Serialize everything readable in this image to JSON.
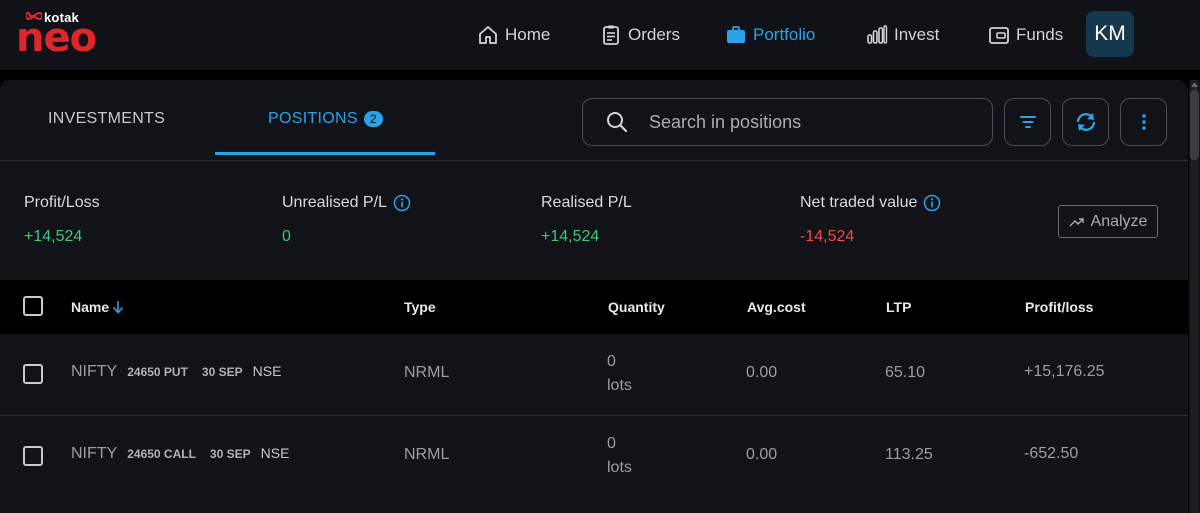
{
  "brand": {
    "small": "kotak",
    "big": "neo"
  },
  "nav": {
    "home": "Home",
    "orders": "Orders",
    "portfolio": "Portfolio",
    "invest": "Invest",
    "funds": "Funds",
    "avatar_initials": "KM"
  },
  "tabs": {
    "investments": "INVESTMENTS",
    "positions": "POSITIONS",
    "positions_count": "2"
  },
  "search": {
    "placeholder": "Search in positions"
  },
  "summary": {
    "profit_loss_label": "Profit/Loss",
    "profit_loss_value": "+14,524",
    "unrealised_label": "Unrealised P/L",
    "unrealised_value": "0",
    "realised_label": "Realised P/L",
    "realised_value": "+14,524",
    "net_traded_label": "Net traded value",
    "net_traded_value": "-14,524",
    "analyze_label": "Analyze"
  },
  "table": {
    "headers": {
      "name": "Name",
      "type": "Type",
      "quantity": "Quantity",
      "avg_cost": "Avg.cost",
      "ltp": "LTP",
      "profit_loss": "Profit/loss"
    },
    "rows": [
      {
        "symbol": "NIFTY",
        "strike": "24650 PUT",
        "expiry": "30 SEP",
        "exchange": "NSE",
        "type": "NRML",
        "qty_value": "0",
        "qty_unit": "lots",
        "avg_cost": "0.00",
        "ltp": "65.10",
        "profit_loss": "+15,176.25"
      },
      {
        "symbol": "NIFTY",
        "strike": "24650 CALL",
        "expiry": "30 SEP",
        "exchange": "NSE",
        "type": "NRML",
        "qty_value": "0",
        "qty_unit": "lots",
        "avg_cost": "0.00",
        "ltp": "113.25",
        "profit_loss": "-652.50"
      }
    ]
  },
  "colors": {
    "accent": "#2aa3e8",
    "profit": "#3fc77e",
    "loss": "#ef4b4b",
    "brand_red": "#e0262c"
  },
  "icons": {
    "home": "home-icon",
    "orders": "clipboard-icon",
    "portfolio": "briefcase-icon",
    "invest": "bar-chart-icon",
    "funds": "wallet-icon",
    "search": "search-icon",
    "filter": "filter-icon",
    "refresh": "refresh-icon",
    "more": "more-vertical-icon",
    "info": "info-icon",
    "analyze": "trend-up-icon",
    "sort": "arrow-down-icon"
  }
}
